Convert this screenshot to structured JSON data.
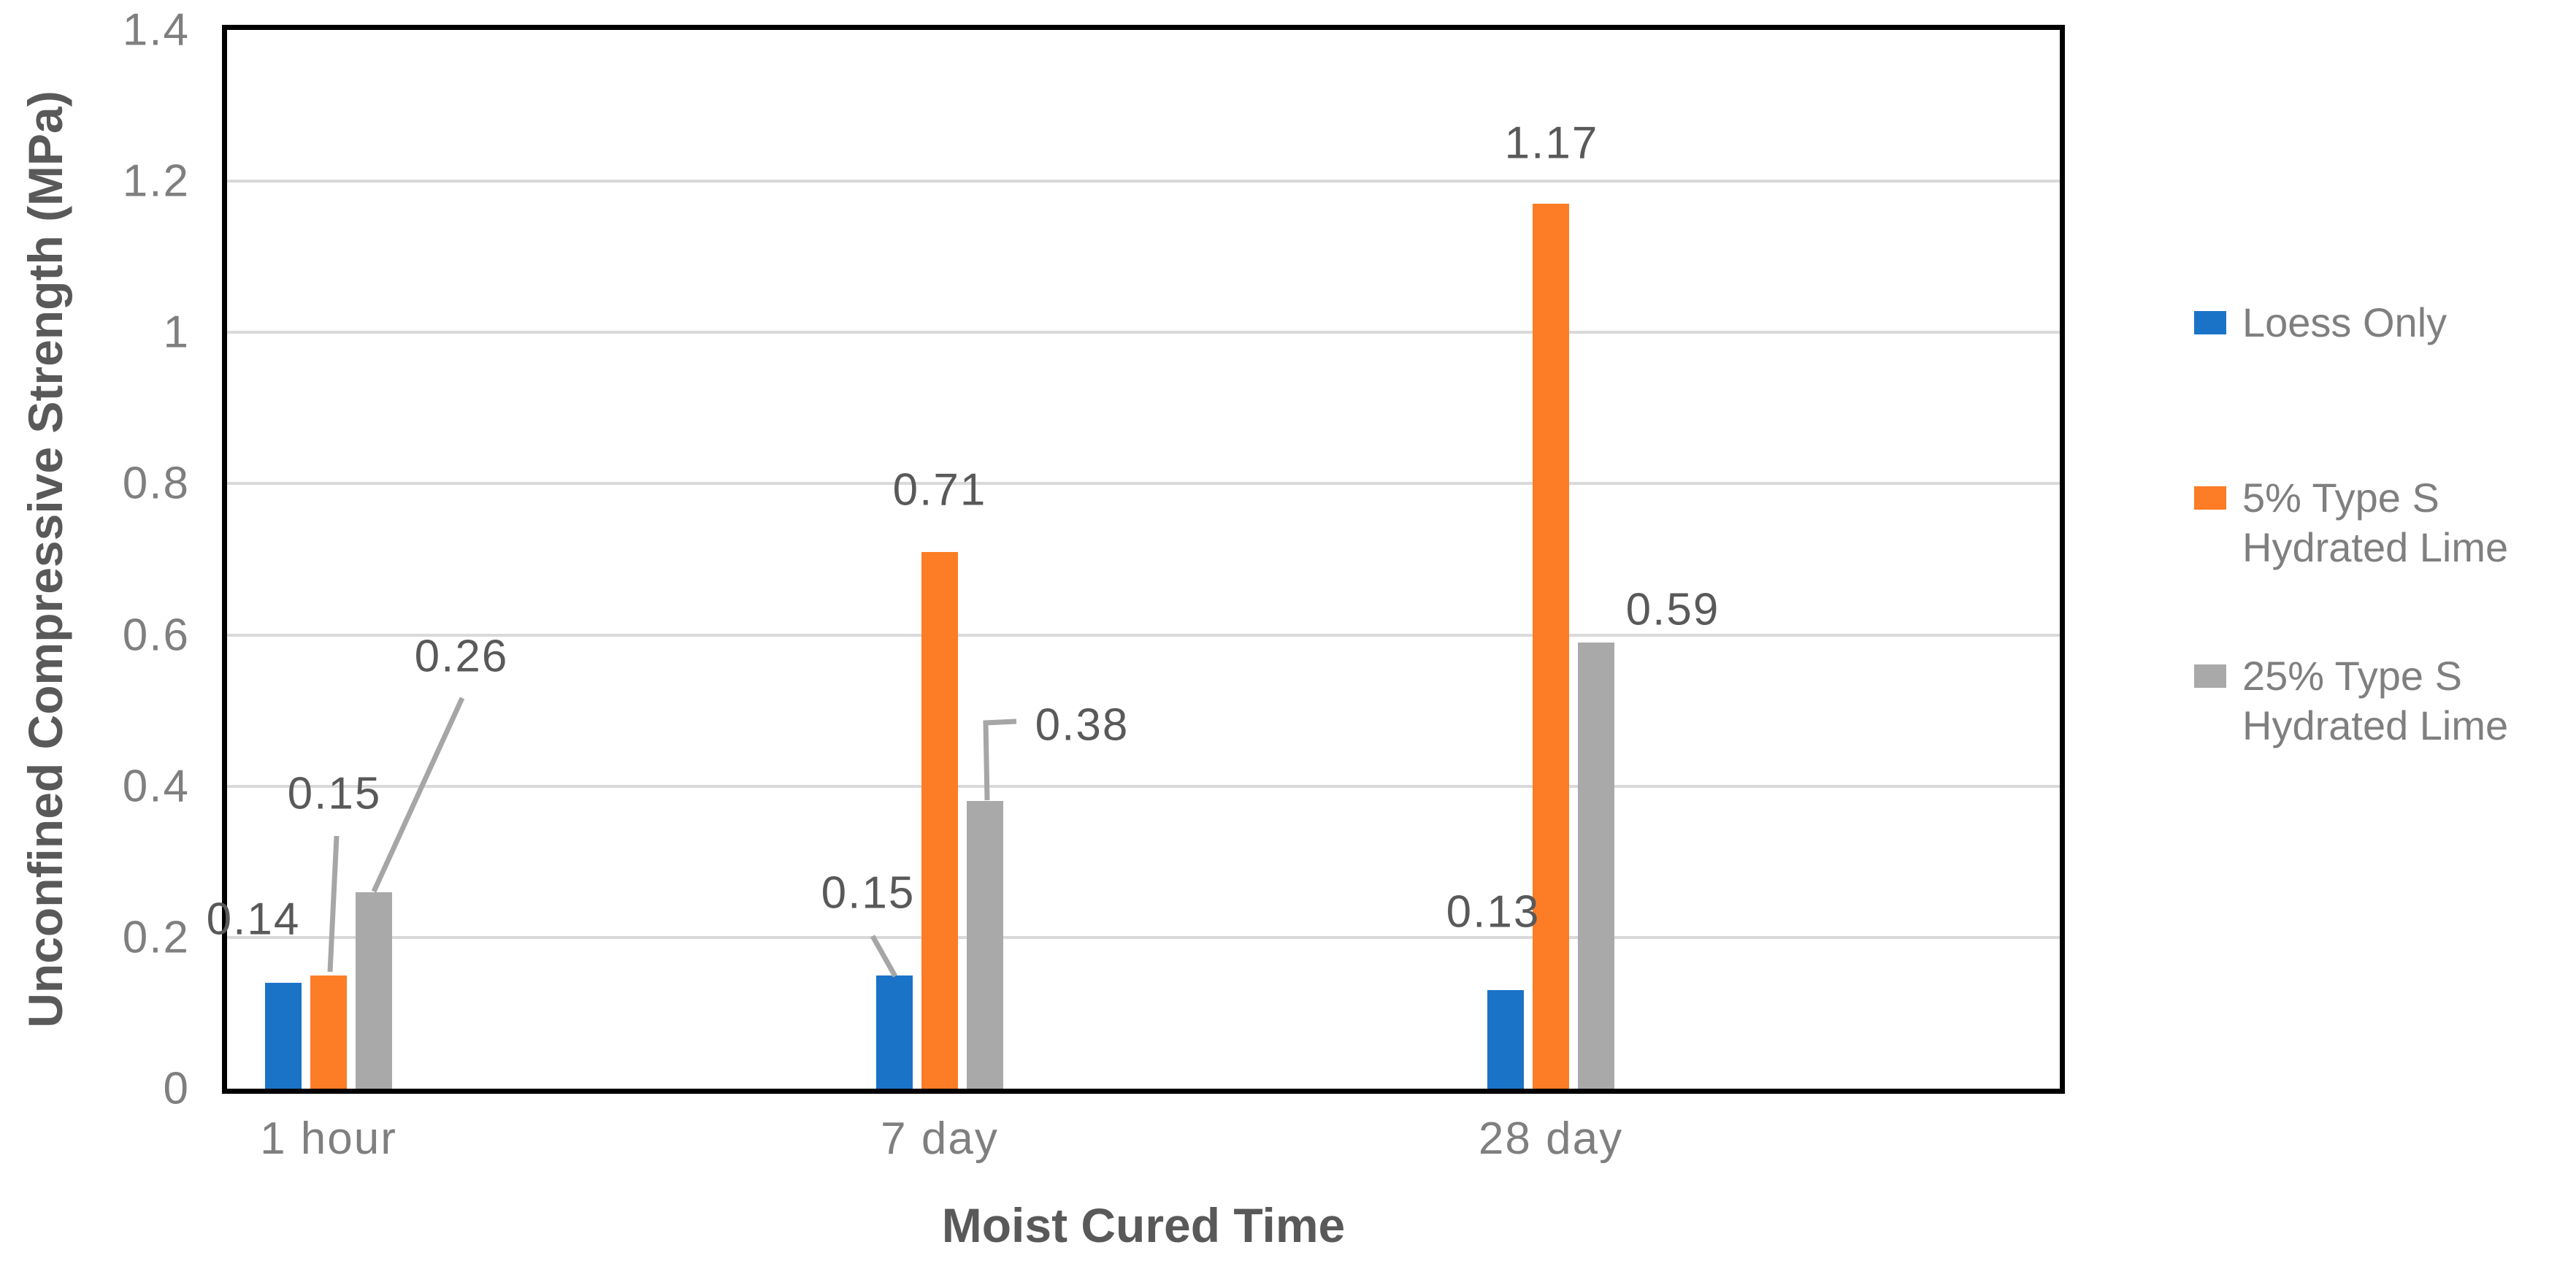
{
  "chart_data": {
    "type": "bar",
    "title": "",
    "xlabel": "Moist Cured Time",
    "ylabel": "Unconfined Compressive Strength (MPa)",
    "categories": [
      "1 hour",
      "7 day",
      "28 day"
    ],
    "series": [
      {
        "name": "Loess Only",
        "color": "#1b73c7",
        "values": [
          0.14,
          0.15,
          0.13
        ],
        "labels": [
          "0.14",
          "0.15",
          "0.13"
        ]
      },
      {
        "name": "5% Type S Hydrated Lime",
        "color": "#fc7d26",
        "values": [
          0.15,
          0.71,
          1.17
        ],
        "labels": [
          "0.15",
          "0.71",
          "1.17"
        ]
      },
      {
        "name": "25% Type S Hydrated Lime",
        "color": "#a9a9a9",
        "values": [
          0.26,
          0.38,
          0.59
        ],
        "labels": [
          "0.26",
          "0.38",
          "0.59"
        ]
      }
    ],
    "y_ticks": [
      "0",
      "0.2",
      "0.4",
      "0.6",
      "0.8",
      "1",
      "1.2",
      "1.4"
    ],
    "ylim": [
      0,
      1.4
    ],
    "grid": true,
    "legend_position": "right",
    "legend": [
      {
        "lines": [
          "Loess Only"
        ],
        "color": "#1b73c7"
      },
      {
        "lines": [
          "5% Type S",
          "Hydrated Lime"
        ],
        "color": "#fc7d26"
      },
      {
        "lines": [
          "25% Type S",
          "Hydrated Lime"
        ],
        "color": "#a9a9a9"
      }
    ],
    "colors": {
      "gridline": "#d9d9d9",
      "axis_border": "#000000",
      "tick_label": "#7f7f7f",
      "data_label": "#595959",
      "leader_line": "#a6a6a6"
    }
  }
}
